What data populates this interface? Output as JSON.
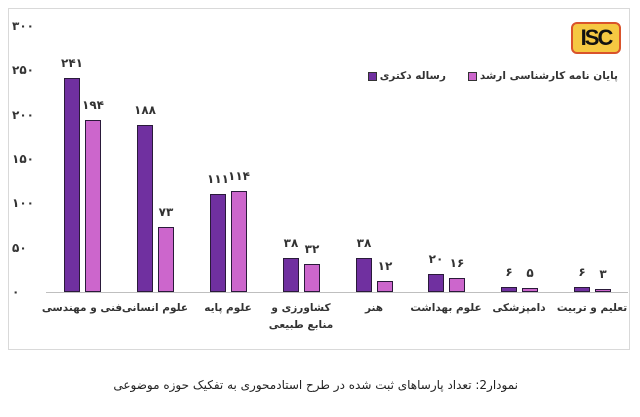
{
  "chart_data": {
    "type": "bar",
    "title": "",
    "caption": "نمودار2: تعداد پارساهای ثبت شده در طرح استادمحوری به تفکیک حوزه موضوعی",
    "xlabel": "",
    "ylabel": "",
    "ylim": [
      0,
      300
    ],
    "yticks": [
      "۰",
      "۵۰",
      "۱۰۰",
      "۱۵۰",
      "۲۰۰",
      "۲۵۰",
      "۳۰۰"
    ],
    "grid": false,
    "legend_position": "top-right",
    "categories": [
      "فنی و مهندسی",
      "علوم انسانی",
      "علوم پایه",
      "کشاورزی و منابع طبیعی",
      "هنر",
      "علوم بهداشت",
      "دامپزشکی",
      "تعلیم و تربیت"
    ],
    "series": [
      {
        "name": "رساله دکتری",
        "color": "#7030a0",
        "values": [
          241,
          188,
          111,
          38,
          38,
          20,
          6,
          6
        ],
        "labels": [
          "۲۴۱",
          "۱۸۸",
          "۱۱۱",
          "۳۸",
          "۳۸",
          "۲۰",
          "۶",
          "۶"
        ]
      },
      {
        "name": "پایان نامه کارشناسی ارشد",
        "color": "#cc66cc",
        "values": [
          194,
          73,
          114,
          32,
          12,
          16,
          5,
          3
        ],
        "labels": [
          "۱۹۴",
          "۷۳",
          "۱۱۴",
          "۳۲",
          "۱۲",
          "۱۶",
          "۵",
          "۳"
        ]
      }
    ]
  },
  "logo": {
    "text": "ISC"
  },
  "legend": {
    "phd": "رساله دکتری",
    "masters": "پایان نامه کارشناسی ارشد"
  },
  "caption": "نمودار2: تعداد پارساهای ثبت شده در طرح استادمحوری به تفکیک حوزه موضوعی"
}
